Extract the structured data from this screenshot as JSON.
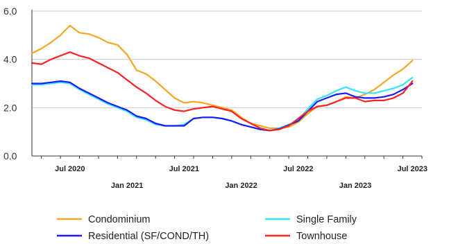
{
  "chart_data": {
    "type": "line",
    "title": "",
    "xlabel": "",
    "ylabel": "",
    "ylim": [
      0,
      6
    ],
    "xlim": [
      "2020-03",
      "2023-08"
    ],
    "grid": "horizontal",
    "legend_position": "bottom",
    "yticks": [
      {
        "value": 0,
        "label": "0.0"
      },
      {
        "value": 2,
        "label": "2.0"
      },
      {
        "value": 4,
        "label": "4.0"
      },
      {
        "value": 6,
        "label": "6.0"
      }
    ],
    "xticks": [
      {
        "date": "2020-07",
        "label": "Jul 2020",
        "row": 1
      },
      {
        "date": "2021-01",
        "label": "Jan 2021",
        "row": 2
      },
      {
        "date": "2021-07",
        "label": "Jul 2021",
        "row": 1
      },
      {
        "date": "2022-01",
        "label": "Jan 2022",
        "row": 2
      },
      {
        "date": "2022-07",
        "label": "Jul 2022",
        "row": 1
      },
      {
        "date": "2023-01",
        "label": "Jan 2023",
        "row": 2
      },
      {
        "date": "2023-07",
        "label": "Jul 2023",
        "row": 1
      }
    ],
    "x": [
      "2020-03",
      "2020-04",
      "2020-05",
      "2020-06",
      "2020-07",
      "2020-08",
      "2020-09",
      "2020-10",
      "2020-11",
      "2020-12",
      "2021-01",
      "2021-02",
      "2021-03",
      "2021-04",
      "2021-05",
      "2021-06",
      "2021-07",
      "2021-08",
      "2021-09",
      "2021-10",
      "2021-11",
      "2021-12",
      "2022-01",
      "2022-02",
      "2022-03",
      "2022-04",
      "2022-05",
      "2022-06",
      "2022-07",
      "2022-08",
      "2022-09",
      "2022-10",
      "2022-11",
      "2022-12",
      "2023-01",
      "2023-02",
      "2023-03",
      "2023-04",
      "2023-05",
      "2023-06",
      "2023-07"
    ],
    "series": [
      {
        "name": "Condominium",
        "color": "#f5a623",
        "values": [
          4.25,
          4.45,
          4.7,
          5.0,
          5.4,
          5.1,
          5.05,
          4.9,
          4.7,
          4.6,
          4.2,
          3.55,
          3.4,
          3.1,
          2.75,
          2.4,
          2.2,
          2.25,
          2.2,
          2.1,
          2.0,
          1.9,
          1.6,
          1.35,
          1.25,
          1.15,
          1.15,
          1.2,
          1.4,
          1.75,
          2.05,
          2.1,
          2.25,
          2.45,
          2.4,
          2.55,
          2.75,
          3.05,
          3.35,
          3.6,
          3.95
        ]
      },
      {
        "name": "Single Family",
        "color": "#33e6ff",
        "values": [
          2.95,
          2.95,
          3.0,
          3.05,
          3.0,
          2.75,
          2.55,
          2.35,
          2.15,
          2.0,
          1.85,
          1.6,
          1.5,
          1.3,
          1.25,
          1.25,
          1.3,
          1.55,
          1.6,
          1.6,
          1.55,
          1.45,
          1.3,
          1.2,
          1.1,
          1.05,
          1.15,
          1.3,
          1.5,
          1.95,
          2.35,
          2.5,
          2.7,
          2.85,
          2.7,
          2.6,
          2.6,
          2.7,
          2.8,
          2.95,
          3.25
        ]
      },
      {
        "name": "Residential (SF/COND/TH)",
        "color": "#1a1aff",
        "values": [
          3.0,
          3.0,
          3.05,
          3.1,
          3.05,
          2.8,
          2.6,
          2.4,
          2.2,
          2.05,
          1.9,
          1.65,
          1.55,
          1.35,
          1.25,
          1.25,
          1.25,
          1.55,
          1.6,
          1.6,
          1.55,
          1.45,
          1.3,
          1.2,
          1.1,
          1.05,
          1.12,
          1.28,
          1.45,
          1.85,
          2.25,
          2.4,
          2.55,
          2.6,
          2.45,
          2.4,
          2.4,
          2.45,
          2.55,
          2.75,
          3.0
        ]
      },
      {
        "name": "Townhouse",
        "color": "#ff2020",
        "values": [
          3.85,
          3.8,
          4.0,
          4.15,
          4.3,
          4.15,
          4.05,
          3.85,
          3.65,
          3.45,
          3.15,
          2.85,
          2.6,
          2.3,
          2.05,
          1.9,
          1.85,
          1.95,
          2.0,
          2.05,
          1.95,
          1.85,
          1.55,
          1.35,
          1.15,
          1.05,
          1.1,
          1.25,
          1.55,
          1.85,
          2.05,
          2.1,
          2.25,
          2.4,
          2.4,
          2.25,
          2.3,
          2.3,
          2.4,
          2.6,
          3.1
        ]
      }
    ],
    "legend": [
      {
        "label": "Condominium",
        "color": "#f5a623"
      },
      {
        "label": "Single Family",
        "color": "#33e6ff"
      },
      {
        "label": "Residential (SF/COND/TH)",
        "color": "#1a1aff"
      },
      {
        "label": "Townhouse",
        "color": "#ff2020"
      }
    ]
  }
}
